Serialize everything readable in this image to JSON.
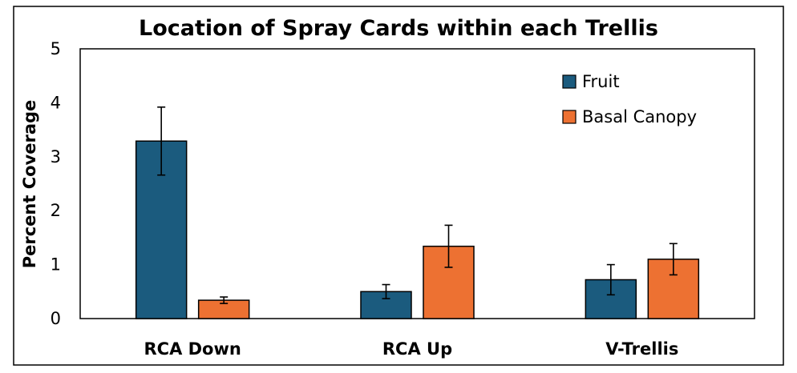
{
  "chart_data": {
    "type": "bar",
    "title": "Location of Spray Cards within each Trellis",
    "xlabel": "",
    "ylabel": "Percent Coverage",
    "ylim": [
      0,
      5
    ],
    "yticks": [
      "0",
      "1",
      "2",
      "3",
      "4",
      "5"
    ],
    "categories": [
      "RCA Down",
      "RCA Up",
      "V-Trellis"
    ],
    "series": [
      {
        "name": "Fruit",
        "color": "#1b5b7e",
        "values": [
          3.29,
          0.5,
          0.72
        ],
        "error": [
          0.63,
          0.13,
          0.28
        ]
      },
      {
        "name": "Basal Canopy",
        "color": "#ed7132",
        "values": [
          0.34,
          1.34,
          1.1
        ],
        "error": [
          0.06,
          0.39,
          0.29
        ]
      }
    ],
    "legend_position": "top-right",
    "grid": false
  }
}
